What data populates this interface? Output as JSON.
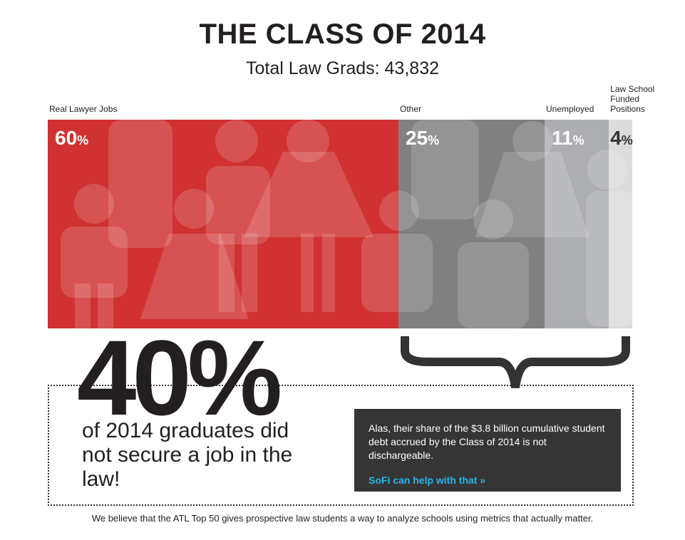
{
  "chart_data": {
    "type": "stacked-bar",
    "title": "THE CLASS OF 2014",
    "subtitle": "Total Law Grads: 43,832",
    "xlim": [
      0,
      100
    ],
    "series": [
      {
        "name": "Real Lawyer Jobs",
        "color": "#d03132",
        "label_color": "#ffffff",
        "values": [
          60
        ],
        "value_labels": [
          "60%"
        ]
      },
      {
        "name": "Other",
        "color": "#808080",
        "label_color": "#ffffff",
        "values": [
          25
        ],
        "value_labels": [
          "25%"
        ]
      },
      {
        "name": "Unemployed",
        "color": "#adaeb2",
        "label_color": "#ffffff",
        "values": [
          11
        ],
        "value_labels": [
          "11%"
        ]
      },
      {
        "name": "Law School Funded Positions",
        "color": "#dcdcdc",
        "label_color": "#333333",
        "values": [
          4
        ],
        "value_labels": [
          "4%"
        ]
      }
    ],
    "highlight": {
      "value": 40,
      "label": "40%"
    },
    "highlight_text": "of 2014 graduates did not secure a job in the law!",
    "note": "Alas, their share of the $3.8 billion cumulative student debt accrued by the Class of 2014 is not dischargeable.",
    "link": "SoFi can help with that »",
    "footer": "We believe that the ATL Top 50 gives prospective law students a way to analyze schools using metrics that actually matter."
  }
}
